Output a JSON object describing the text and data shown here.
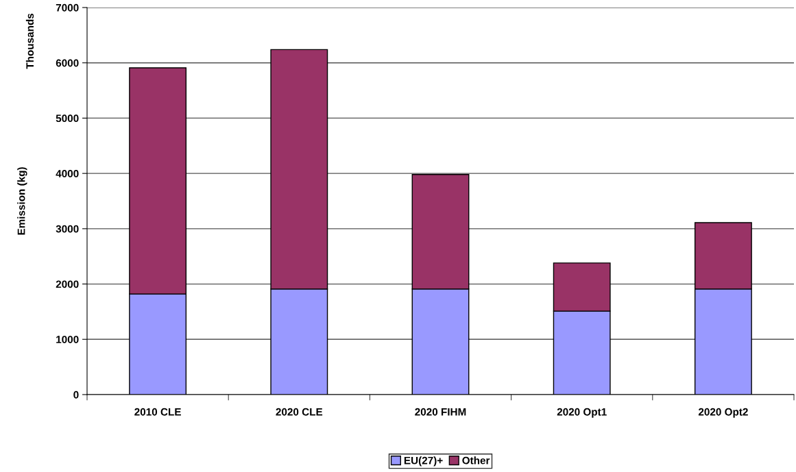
{
  "chart_data": {
    "type": "bar",
    "stacked": true,
    "ylabel": "Emission (kg)",
    "annotations": [
      "Thousands"
    ],
    "categories": [
      "2010 CLE",
      "2020 CLE",
      "2020 FIHM",
      "2020 Opt1",
      "2020 Opt2"
    ],
    "series": [
      {
        "name": "EU(27)+",
        "color": "#9999ff",
        "values": [
          1820,
          1910,
          1910,
          1510,
          1910
        ]
      },
      {
        "name": "Other",
        "color": "#993366",
        "values": [
          4090,
          4330,
          2070,
          870,
          1200
        ]
      }
    ],
    "ylim": [
      0,
      7000
    ],
    "yticks": [
      0,
      1000,
      2000,
      3000,
      4000,
      5000,
      6000,
      7000
    ],
    "grid": "y",
    "legend": "bottom"
  }
}
